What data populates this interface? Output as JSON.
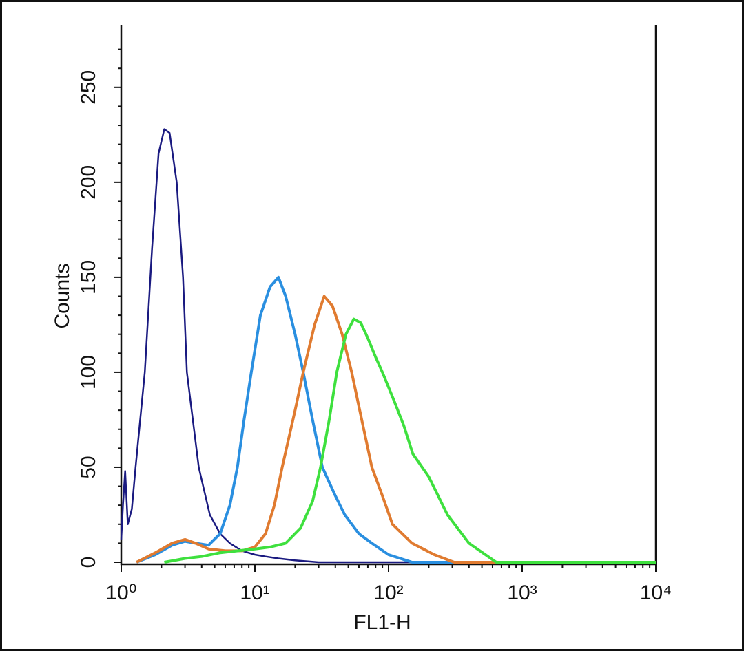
{
  "chart_data": {
    "type": "histogram-line",
    "x_label": "FL1-H",
    "y_label": "Counts",
    "log_x": true,
    "xlim": [
      1,
      10000
    ],
    "xticks": [
      {
        "value": 1,
        "label": "10⁰"
      },
      {
        "value": 10,
        "label": "10¹"
      },
      {
        "value": 100,
        "label": "10²"
      },
      {
        "value": 1000,
        "label": "10³"
      },
      {
        "value": 10000,
        "label": "10⁴"
      }
    ],
    "ylim": [
      0,
      280
    ],
    "yticks": [
      0,
      50,
      100,
      150,
      200,
      250
    ],
    "series": [
      {
        "color": "#1a1a80",
        "x": [
          1,
          1.03,
          1.07,
          1.12,
          1.2,
          1.28,
          1.5,
          1.7,
          1.9,
          2.1,
          2.3,
          2.6,
          2.9,
          3.1,
          3.8,
          4.6,
          5.5,
          6.5,
          8,
          10,
          12,
          15,
          20,
          30,
          100,
          10000
        ],
        "values": [
          12,
          30,
          48,
          20,
          28,
          50,
          100,
          165,
          215,
          228,
          226,
          200,
          150,
          100,
          50,
          25,
          15,
          10,
          6,
          4,
          3,
          2,
          1,
          0,
          0,
          0
        ]
      },
      {
        "color": "#2a8fe0",
        "x": [
          1.3,
          1.8,
          2.4,
          3.0,
          3.6,
          4.5,
          5.5,
          6.5,
          7.4,
          8.3,
          9.4,
          11,
          13,
          15,
          17,
          20,
          23,
          27,
          32,
          40,
          47,
          60,
          75,
          100,
          150,
          10000
        ],
        "values": [
          0,
          4,
          9,
          11,
          10,
          9,
          15,
          30,
          50,
          75,
          100,
          130,
          145,
          150,
          140,
          120,
          100,
          75,
          50,
          35,
          25,
          15,
          10,
          4,
          0,
          0
        ]
      },
      {
        "color": "#e07b30",
        "x": [
          1.3,
          1.8,
          2.4,
          3.0,
          3.6,
          4.5,
          6,
          8,
          10,
          12,
          14,
          16,
          20,
          23,
          28,
          33,
          38,
          45,
          53,
          63,
          75,
          90,
          107,
          150,
          220,
          310,
          10000
        ],
        "values": [
          0,
          5,
          10,
          12,
          10,
          7,
          6,
          6,
          8,
          15,
          30,
          50,
          80,
          100,
          125,
          140,
          135,
          120,
          100,
          75,
          50,
          35,
          20,
          10,
          4,
          0,
          0
        ]
      },
      {
        "color": "#3ee03e",
        "x": [
          2.1,
          3,
          4,
          5.5,
          7.5,
          10,
          13,
          17,
          22,
          27,
          31,
          36,
          41,
          48,
          55,
          62,
          70,
          80,
          90,
          110,
          130,
          152,
          200,
          276,
          400,
          640,
          10000
        ],
        "values": [
          0,
          2,
          3,
          5,
          6,
          7,
          8,
          10,
          18,
          32,
          50,
          75,
          100,
          120,
          128,
          126,
          118,
          108,
          100,
          85,
          72,
          57,
          45,
          25,
          10,
          0,
          0
        ]
      }
    ]
  }
}
